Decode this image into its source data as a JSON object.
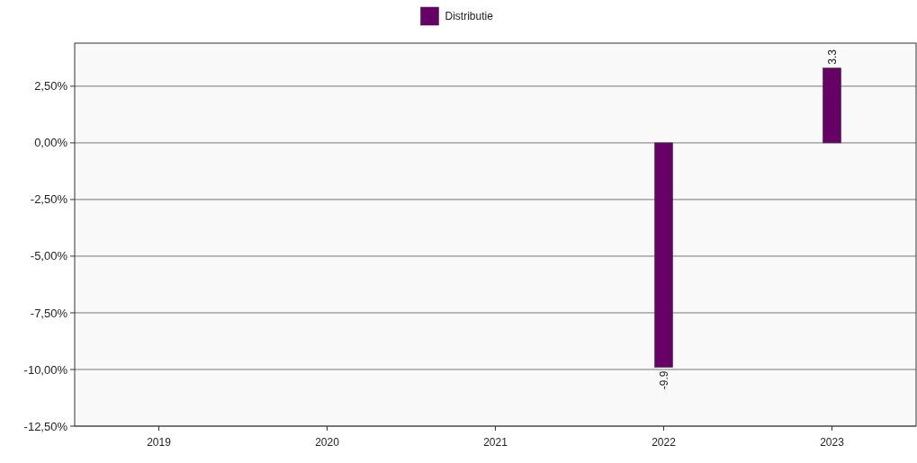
{
  "chart_data": {
    "type": "bar",
    "categories": [
      "2019",
      "2020",
      "2021",
      "2022",
      "2023"
    ],
    "series": [
      {
        "name": "Distributie",
        "color": "#660066",
        "values": [
          0,
          0,
          0,
          -9.9,
          3.3
        ],
        "value_labels": [
          null,
          null,
          null,
          "-9.9",
          "3.3"
        ]
      }
    ],
    "ylim": [
      -12.5,
      4.4
    ],
    "yticks": [
      {
        "value": 2.5,
        "label": "2,50%"
      },
      {
        "value": 0,
        "label": "0,00%"
      },
      {
        "value": -2.5,
        "label": "-2,50%"
      },
      {
        "value": -5,
        "label": "-5,00%"
      },
      {
        "value": -7.5,
        "label": "-7,50%"
      },
      {
        "value": -10,
        "label": "-10,00%"
      },
      {
        "value": -12.5,
        "label": "-12,50%"
      }
    ],
    "grid": "y",
    "legend": "top"
  }
}
